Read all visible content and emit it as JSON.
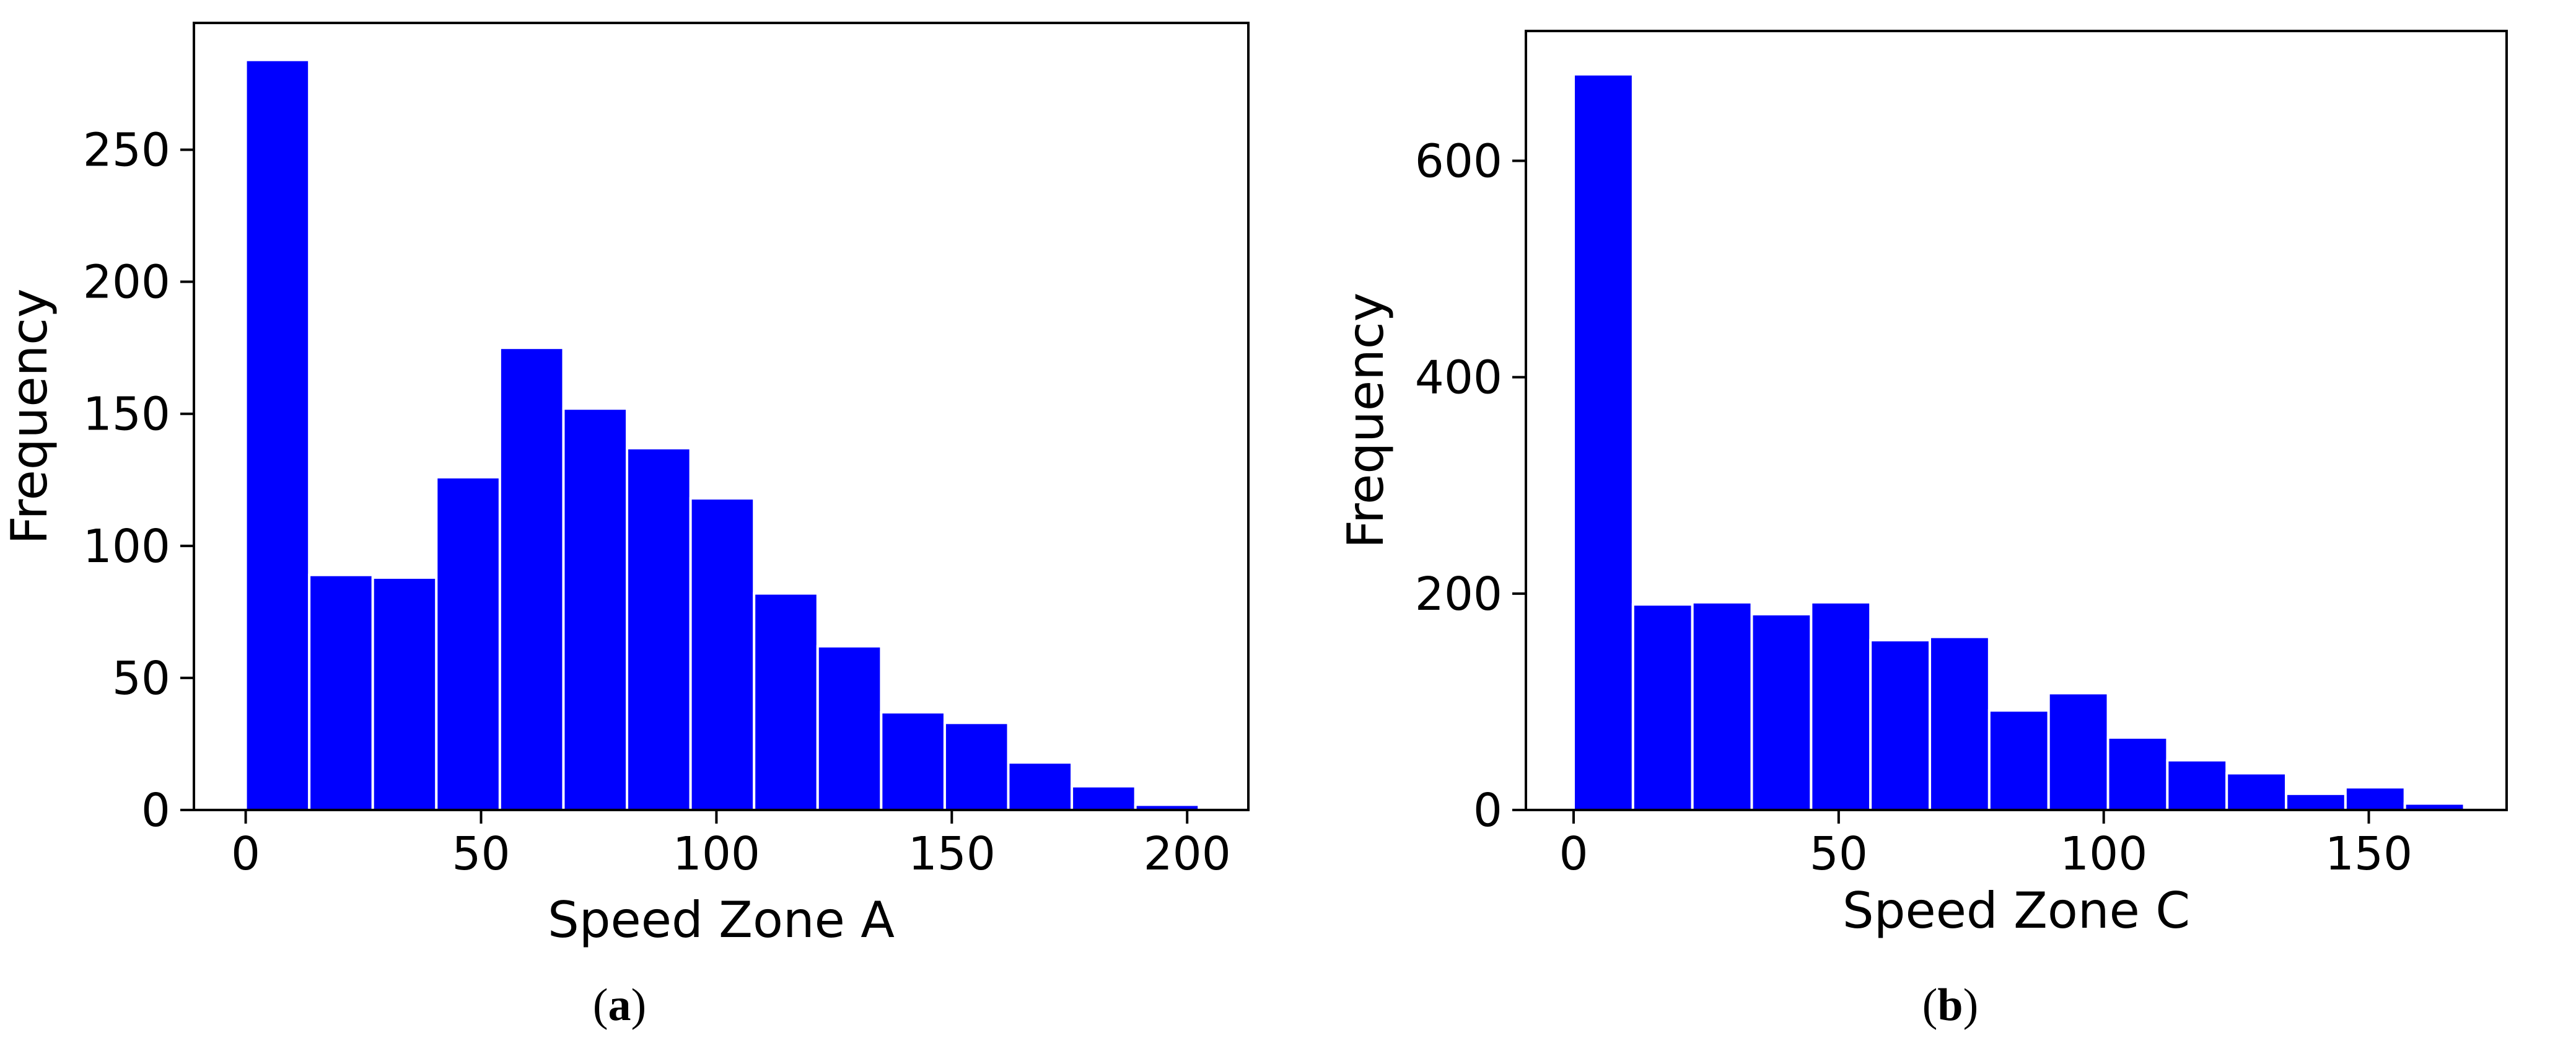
{
  "chart_data": [
    {
      "type": "bar",
      "panel_caption": {
        "open": "(",
        "letter": "a",
        "close": ")"
      },
      "xlabel": "Speed Zone A",
      "ylabel": "Frequency",
      "bin_edges": [
        0,
        13.5,
        27,
        40.5,
        54,
        67.5,
        81,
        94.5,
        108,
        121.5,
        135,
        148.5,
        162,
        175.5,
        189,
        202.5
      ],
      "values": [
        284,
        89,
        88,
        126,
        175,
        152,
        137,
        118,
        82,
        62,
        37,
        33,
        18,
        9,
        2
      ],
      "xlim": [
        -11,
        213
      ],
      "ylim": [
        0,
        298
      ],
      "xticks": [
        0,
        50,
        100,
        150,
        200
      ],
      "yticks": [
        0,
        50,
        100,
        150,
        200,
        250
      ],
      "bar_color": "#0000ff",
      "edge_color": "#ffffff"
    },
    {
      "type": "bar",
      "panel_caption": {
        "open": "(",
        "letter": "b",
        "close": ")"
      },
      "xlabel": "Speed Zone C",
      "ylabel": "Frequency",
      "bin_edges": [
        0,
        11.2,
        22.4,
        33.6,
        44.8,
        56,
        67.2,
        78.4,
        89.6,
        100.8,
        112,
        123.2,
        134.4,
        145.6,
        156.8,
        168
      ],
      "values": [
        680,
        190,
        192,
        181,
        192,
        157,
        160,
        92,
        108,
        67,
        46,
        34,
        15,
        21,
        6
      ],
      "xlim": [
        -9,
        176
      ],
      "ylim": [
        0,
        720
      ],
      "xticks": [
        0,
        50,
        100,
        150
      ],
      "yticks": [
        0,
        200,
        400,
        600
      ],
      "bar_color": "#0000ff",
      "edge_color": "#ffffff"
    }
  ]
}
